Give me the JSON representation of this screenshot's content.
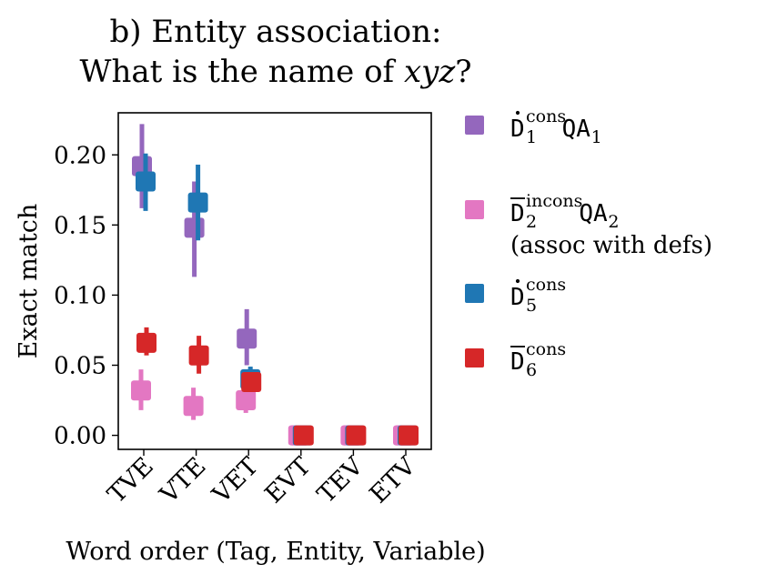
{
  "chart_data": {
    "type": "scatter",
    "title": [
      "b) Entity association:",
      "What is the name of xyz?"
    ],
    "title_parts": {
      "line1": "b) Entity association:",
      "line2_prefix": "What is the name of ",
      "line2_var": "xyz",
      "line2_suffix": "?"
    },
    "xlabel": "Word order (Tag, Entity, Variable)",
    "ylabel": "Exact match",
    "categories": [
      "TVE",
      "VTE",
      "VET",
      "EVT",
      "TEV",
      "ETV"
    ],
    "ylim": [
      -0.01,
      0.23
    ],
    "yticks": [
      0.0,
      0.05,
      0.1,
      0.15,
      0.2
    ],
    "ytick_labels": [
      "0.00",
      "0.05",
      "0.10",
      "0.15",
      "0.20"
    ],
    "grid": false,
    "legend_position": "outside-right",
    "series": [
      {
        "name": "Ḋ1 cons QA1",
        "legend": {
          "base": "D",
          "accent": "dot",
          "sub": "1",
          "sup": "cons",
          "suffix": "QA",
          "suffix_sub": "1",
          "extra": ""
        },
        "color": "#9467bd",
        "values": [
          0.192,
          0.148,
          0.069,
          0.0,
          0.0,
          0.0
        ],
        "err_low": [
          0.162,
          0.113,
          0.05,
          0.0,
          0.0,
          0.0
        ],
        "err_high": [
          0.222,
          0.181,
          0.09,
          0.0,
          0.0,
          0.0
        ]
      },
      {
        "name": "D̄2 incons QA2 (assoc with defs)",
        "legend": {
          "base": "D",
          "accent": "bar",
          "sub": "2",
          "sup": "incons",
          "suffix": "QA",
          "suffix_sub": "2",
          "extra": "(assoc with defs)"
        },
        "color": "#e377c2",
        "values": [
          0.032,
          0.021,
          0.025,
          0.0,
          0.0,
          0.0
        ],
        "err_low": [
          0.018,
          0.011,
          0.016,
          0.0,
          0.0,
          0.0
        ],
        "err_high": [
          0.047,
          0.034,
          0.035,
          0.0,
          0.0,
          0.0
        ]
      },
      {
        "name": "Ḋ5 cons",
        "legend": {
          "base": "D",
          "accent": "dot",
          "sub": "5",
          "sup": "cons",
          "suffix": "",
          "suffix_sub": "",
          "extra": ""
        },
        "color": "#1f77b4",
        "values": [
          0.181,
          0.166,
          0.04,
          0.0,
          0.0,
          0.0
        ],
        "err_low": [
          0.16,
          0.139,
          0.031,
          0.0,
          0.0,
          0.0
        ],
        "err_high": [
          0.201,
          0.193,
          0.049,
          0.0,
          0.0,
          0.0
        ]
      },
      {
        "name": "D̄6 cons",
        "legend": {
          "base": "D",
          "accent": "bar",
          "sub": "6",
          "sup": "cons",
          "suffix": "",
          "suffix_sub": "",
          "extra": ""
        },
        "color": "#d62728",
        "values": [
          0.066,
          0.057,
          0.038,
          0.0,
          0.0,
          0.0
        ],
        "err_low": [
          0.057,
          0.044,
          0.031,
          0.0,
          0.0,
          0.0
        ],
        "err_high": [
          0.077,
          0.071,
          0.045,
          0.0,
          0.0,
          0.0
        ]
      }
    ]
  }
}
